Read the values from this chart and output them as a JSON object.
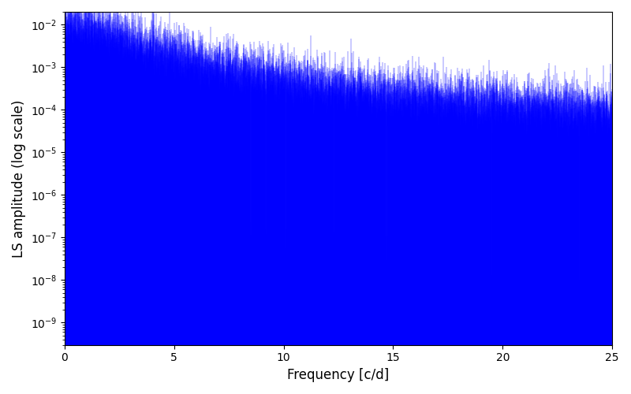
{
  "xlabel": "Frequency [c/d]",
  "ylabel": "LS amplitude (log scale)",
  "xlim": [
    0,
    25
  ],
  "ymin": 3e-10,
  "ymax": 0.02,
  "line_color": "#0000ff",
  "background_color": "#ffffff",
  "figsize": [
    8.0,
    5.0
  ],
  "dpi": 100,
  "seed": 12345,
  "n_points": 8000,
  "freq_max": 25.0,
  "f0": 2.5,
  "alpha": 2.2,
  "A": 0.01,
  "floor_level": 3e-05,
  "log_noise_std": 0.8
}
